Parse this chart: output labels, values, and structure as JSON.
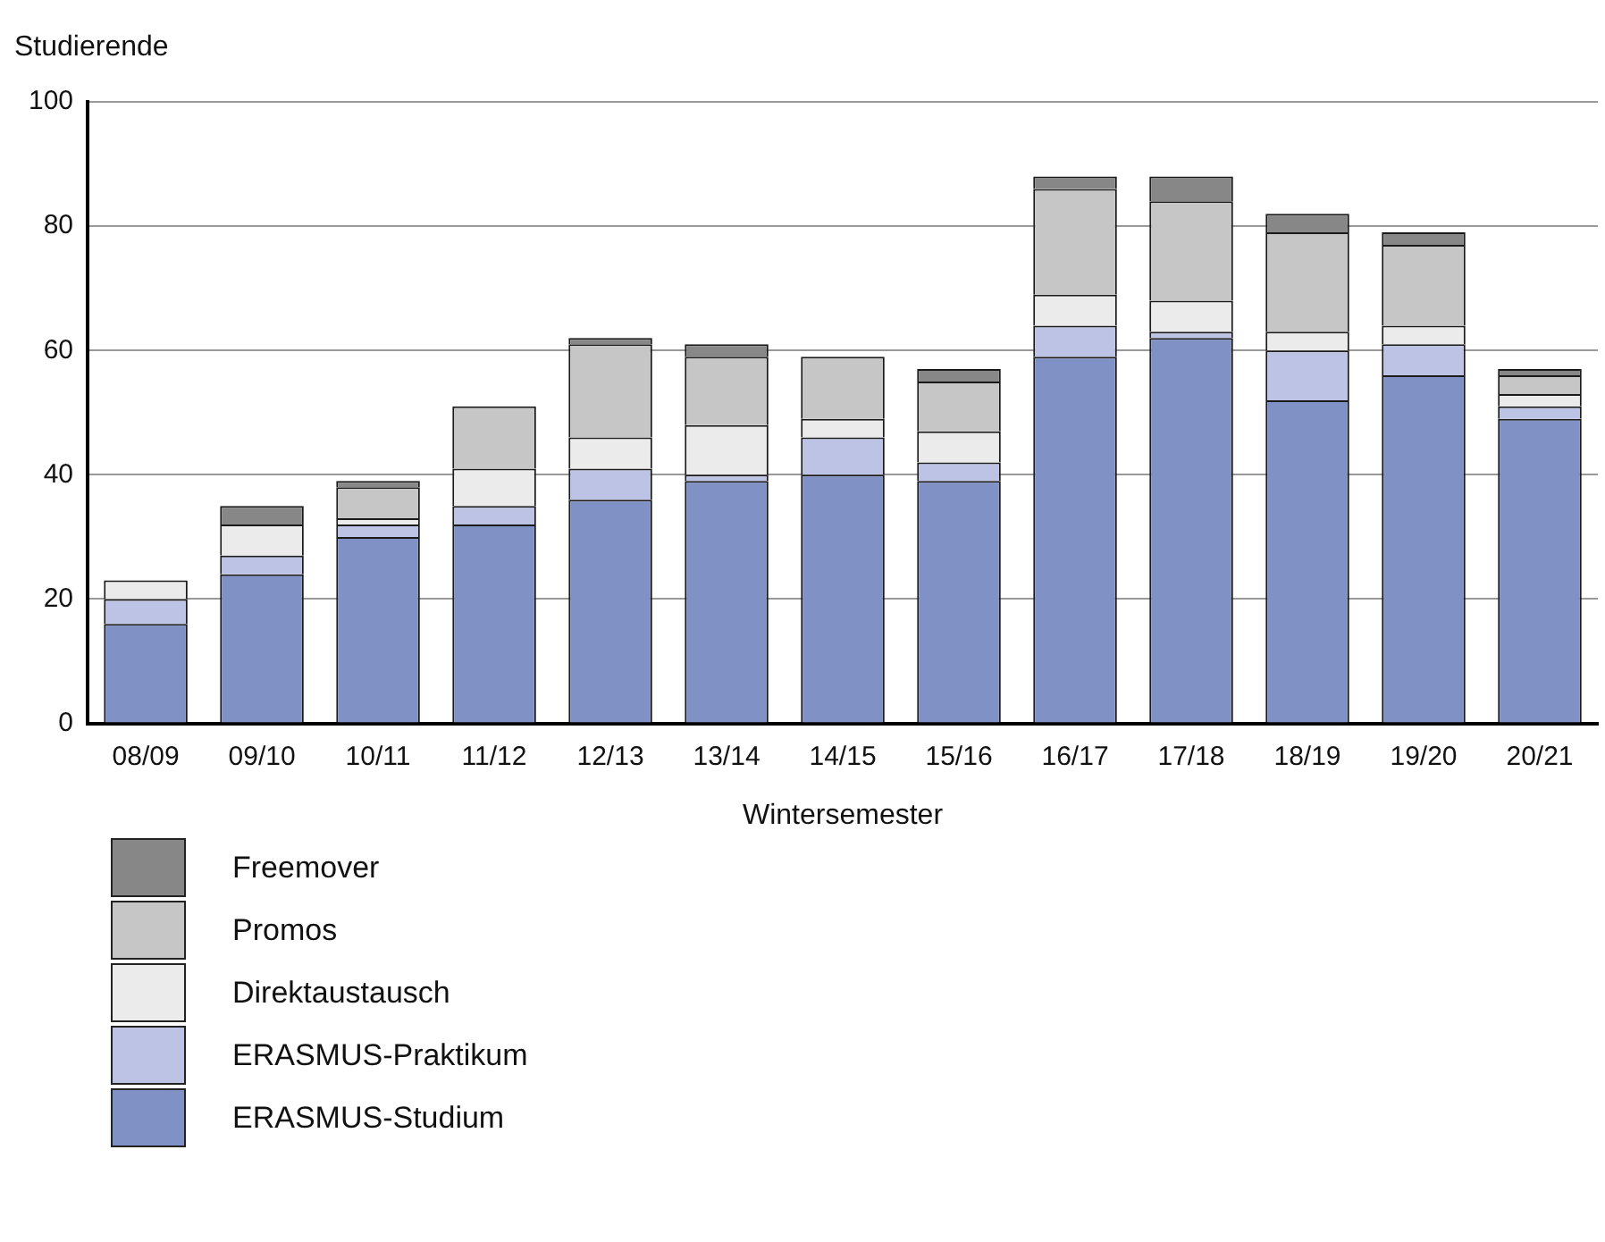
{
  "chart_data": {
    "type": "bar",
    "stacked": true,
    "ylabel": "Studierende",
    "xlabel": "Wintersemester",
    "categories": [
      "08/09",
      "09/10",
      "10/11",
      "11/12",
      "12/13",
      "13/14",
      "14/15",
      "15/16",
      "16/17",
      "17/18",
      "18/19",
      "19/20",
      "20/21"
    ],
    "series": [
      {
        "name": "ERASMUS-Studium",
        "color": "#8091c5",
        "values": [
          16,
          24,
          30,
          32,
          36,
          39,
          40,
          39,
          59,
          62,
          52,
          56,
          49
        ]
      },
      {
        "name": "ERASMUS-Praktikum",
        "color": "#bcc3e4",
        "values": [
          4,
          3,
          2,
          3,
          5,
          1,
          6,
          3,
          5,
          1,
          8,
          5,
          2
        ]
      },
      {
        "name": "Direktaustausch",
        "color": "#ebebeb",
        "values": [
          3,
          5,
          1,
          6,
          5,
          8,
          3,
          5,
          5,
          5,
          3,
          3,
          2
        ]
      },
      {
        "name": "Promos",
        "color": "#c5c6c5",
        "values": [
          0,
          0,
          5,
          10,
          15,
          11,
          10,
          8,
          17,
          16,
          16,
          13,
          3
        ]
      },
      {
        "name": "Freemover",
        "color": "#878787",
        "values": [
          0,
          3,
          1,
          0,
          1,
          2,
          0,
          2,
          2,
          4,
          3,
          2,
          1
        ]
      }
    ],
    "ylim": [
      0,
      100
    ],
    "yticks": [
      0,
      20,
      40,
      60,
      80,
      100
    ],
    "grid": "y",
    "legend": "bottom left"
  }
}
